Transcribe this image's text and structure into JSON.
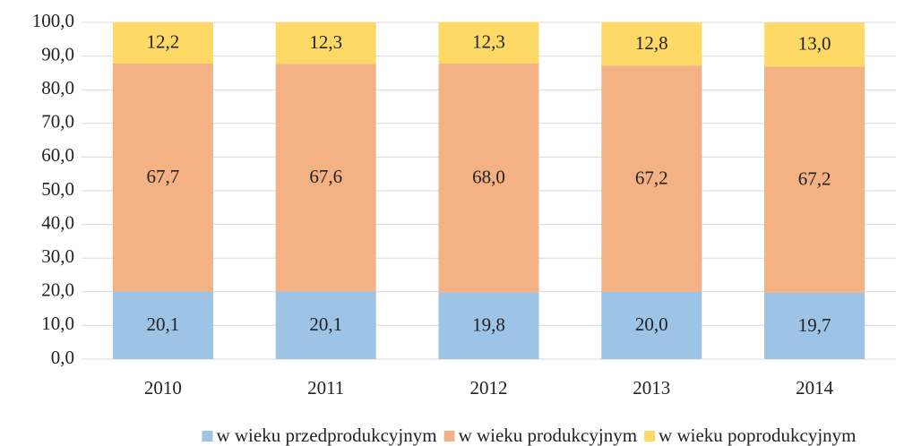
{
  "chart_data": {
    "type": "stacked_bar",
    "categories": [
      "2010",
      "2011",
      "2012",
      "2013",
      "2014"
    ],
    "series": [
      {
        "name": "w wieku przedprodukcyjnym",
        "color": "#9dc3e6",
        "values": [
          20.1,
          20.1,
          19.8,
          20.0,
          19.7
        ],
        "value_labels": [
          "20,1",
          "20,1",
          "19,8",
          "20,0",
          "19,7"
        ]
      },
      {
        "name": "w wieku produkcyjnym",
        "color": "#f4b183",
        "values": [
          67.7,
          67.6,
          68.0,
          67.2,
          67.2
        ],
        "value_labels": [
          "67,7",
          "67,6",
          "68,0",
          "67,2",
          "67,2"
        ]
      },
      {
        "name": "w wieku poprodukcyjnym",
        "color": "#ffd966",
        "values": [
          12.2,
          12.3,
          12.3,
          12.8,
          13.0
        ],
        "value_labels": [
          "12,2",
          "12,3",
          "12,3",
          "12,8",
          "13,0"
        ]
      }
    ],
    "ylim": [
      0,
      100
    ],
    "yticks": [
      {
        "value": 0,
        "label": "0,0"
      },
      {
        "value": 10,
        "label": "10,0"
      },
      {
        "value": 20,
        "label": "20,0"
      },
      {
        "value": 30,
        "label": "30,0"
      },
      {
        "value": 40,
        "label": "40,0"
      },
      {
        "value": 50,
        "label": "50,0"
      },
      {
        "value": 60,
        "label": "60,0"
      },
      {
        "value": 70,
        "label": "70,0"
      },
      {
        "value": 80,
        "label": "80,0"
      },
      {
        "value": 90,
        "label": "90,0"
      },
      {
        "value": 100,
        "label": "100,0"
      }
    ],
    "grid": true,
    "legend": "bottom"
  }
}
